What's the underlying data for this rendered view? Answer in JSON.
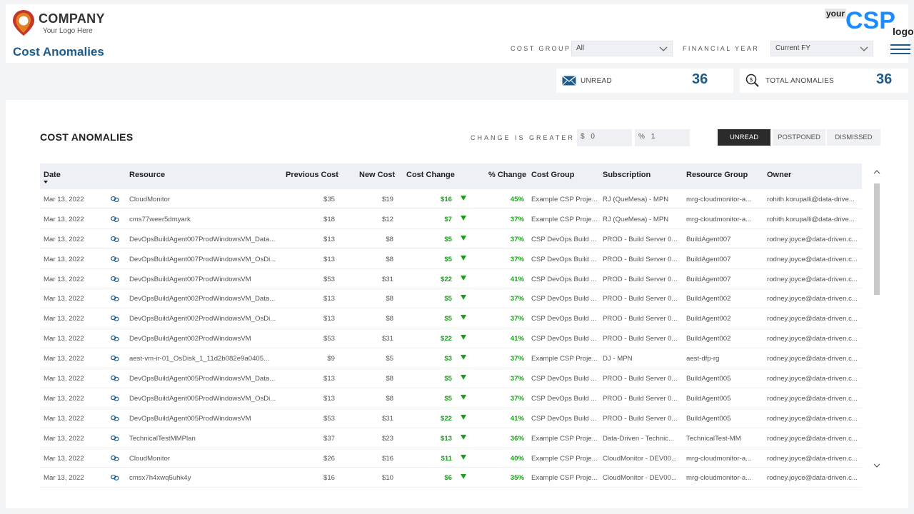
{
  "brand": {
    "name": "COMPANY",
    "tagline": "Your Logo Here",
    "accent": "#1c5b8c"
  },
  "csp_logo": {
    "your": "your",
    "csp": "CSP",
    "logo": "logo"
  },
  "page_title": "Cost Anomalies",
  "filters": {
    "cost_group_label": "COST GROUP",
    "cost_group_value": "All",
    "financial_year_label": "FINANCIAL YEAR",
    "financial_year_value": "Current FY"
  },
  "kpis": {
    "unread_label": "UNREAD",
    "unread_value": "36",
    "total_label": "TOTAL ANOMALIES",
    "total_value": "36"
  },
  "panel": {
    "title": "COST ANOMALIES",
    "change_label": "CHANGE IS GREATER",
    "dollar_prefix": "$",
    "dollar_value": "0",
    "percent_prefix": "%",
    "percent_value": "1"
  },
  "tabs": [
    {
      "label": "UNREAD",
      "active": true
    },
    {
      "label": "POSTPONED",
      "active": false
    },
    {
      "label": "DISMISSED",
      "active": false
    }
  ],
  "table": {
    "headers": {
      "date": "Date",
      "resource": "Resource",
      "previous_cost": "Previous Cost",
      "new_cost": "New Cost",
      "cost_change": "Cost Change",
      "pct_change": "% Change",
      "cost_group": "Cost Group",
      "subscription": "Subscription",
      "resource_group": "Resource Group",
      "owner": "Owner"
    },
    "rows": [
      {
        "date": "Mar 13, 2022",
        "resource": "CloudMonitor",
        "prev": "$35",
        "new": "$19",
        "change": "$16",
        "pct": "45%",
        "cost_group": "Example CSP Proje...",
        "subscription": "RJ (QueMesa) - MPN",
        "resource_group": "mrg-cloudmonitor-a...",
        "owner": "rohith.korupalli@data-drive..."
      },
      {
        "date": "Mar 13, 2022",
        "resource": "cms77weer5dmyark",
        "prev": "$18",
        "new": "$12",
        "change": "$7",
        "pct": "37%",
        "cost_group": "Example CSP Proje...",
        "subscription": "RJ (QueMesa) - MPN",
        "resource_group": "mrg-cloudmonitor-a...",
        "owner": "rohith.korupalli@data-drive..."
      },
      {
        "date": "Mar 13, 2022",
        "resource": "DevOpsBuildAgent007ProdWindowsVM_Data...",
        "prev": "$13",
        "new": "$8",
        "change": "$5",
        "pct": "37%",
        "cost_group": "CSP DevOps Build ...",
        "subscription": "PROD - Build Server 0...",
        "resource_group": "BuildAgent007",
        "owner": "rodney.joyce@data-driven.c..."
      },
      {
        "date": "Mar 13, 2022",
        "resource": "DevOpsBuildAgent007ProdWindowsVM_OsDi...",
        "prev": "$13",
        "new": "$8",
        "change": "$5",
        "pct": "37%",
        "cost_group": "CSP DevOps Build ...",
        "subscription": "PROD - Build Server 0...",
        "resource_group": "BuildAgent007",
        "owner": "rodney.joyce@data-driven.c..."
      },
      {
        "date": "Mar 13, 2022",
        "resource": "DevOpsBuildAgent007ProdWindowsVM",
        "prev": "$53",
        "new": "$31",
        "change": "$22",
        "pct": "41%",
        "cost_group": "CSP DevOps Build ...",
        "subscription": "PROD - Build Server 0...",
        "resource_group": "BuildAgent007",
        "owner": "rodney.joyce@data-driven.c..."
      },
      {
        "date": "Mar 13, 2022",
        "resource": "DevOpsBuildAgent002ProdWindowsVM_Data...",
        "prev": "$13",
        "new": "$8",
        "change": "$5",
        "pct": "37%",
        "cost_group": "CSP DevOps Build ...",
        "subscription": "PROD - Build Server 0...",
        "resource_group": "BuildAgent002",
        "owner": "rodney.joyce@data-driven.c..."
      },
      {
        "date": "Mar 13, 2022",
        "resource": "DevOpsBuildAgent002ProdWindowsVM_OsDi...",
        "prev": "$13",
        "new": "$8",
        "change": "$5",
        "pct": "37%",
        "cost_group": "CSP DevOps Build ...",
        "subscription": "PROD - Build Server 0...",
        "resource_group": "BuildAgent002",
        "owner": "rodney.joyce@data-driven.c..."
      },
      {
        "date": "Mar 13, 2022",
        "resource": "DevOpsBuildAgent002ProdWindowsVM",
        "prev": "$53",
        "new": "$31",
        "change": "$22",
        "pct": "41%",
        "cost_group": "CSP DevOps Build ...",
        "subscription": "PROD - Build Server 0...",
        "resource_group": "BuildAgent002",
        "owner": "rodney.joyce@data-driven.c..."
      },
      {
        "date": "Mar 13, 2022",
        "resource": "aest-vm-ir-01_OsDisk_1_11d2b082e9a0405...",
        "prev": "$9",
        "new": "$5",
        "change": "$3",
        "pct": "37%",
        "cost_group": "Example CSP Proje...",
        "subscription": "DJ - MPN",
        "resource_group": "aest-dfp-rg",
        "owner": "rodney.joyce@data-driven.c..."
      },
      {
        "date": "Mar 13, 2022",
        "resource": "DevOpsBuildAgent005ProdWindowsVM_Data...",
        "prev": "$13",
        "new": "$8",
        "change": "$5",
        "pct": "37%",
        "cost_group": "CSP DevOps Build ...",
        "subscription": "PROD - Build Server 0...",
        "resource_group": "BuildAgent005",
        "owner": "rodney.joyce@data-driven.c..."
      },
      {
        "date": "Mar 13, 2022",
        "resource": "DevOpsBuildAgent005ProdWindowsVM_OsDi...",
        "prev": "$13",
        "new": "$8",
        "change": "$5",
        "pct": "37%",
        "cost_group": "CSP DevOps Build ...",
        "subscription": "PROD - Build Server 0...",
        "resource_group": "BuildAgent005",
        "owner": "rodney.joyce@data-driven.c..."
      },
      {
        "date": "Mar 13, 2022",
        "resource": "DevOpsBuildAgent005ProdWindowsVM",
        "prev": "$53",
        "new": "$31",
        "change": "$22",
        "pct": "41%",
        "cost_group": "CSP DevOps Build ...",
        "subscription": "PROD - Build Server 0...",
        "resource_group": "BuildAgent005",
        "owner": "rodney.joyce@data-driven.c..."
      },
      {
        "date": "Mar 13, 2022",
        "resource": "TechnicalTestMMPlan",
        "prev": "$37",
        "new": "$23",
        "change": "$13",
        "pct": "36%",
        "cost_group": "Example CSP Proje...",
        "subscription": "Data-Driven - Technic...",
        "resource_group": "TechnicalTest-MM",
        "owner": "rodney.joyce@data-driven.c..."
      },
      {
        "date": "Mar 13, 2022",
        "resource": "CloudMonitor",
        "prev": "$26",
        "new": "$16",
        "change": "$11",
        "pct": "40%",
        "cost_group": "Example CSP Proje...",
        "subscription": "CloudMonitor - DEV00...",
        "resource_group": "mrg-cloudmonitor-a...",
        "owner": "rodney.joyce@data-driven.c..."
      },
      {
        "date": "Mar 13, 2022",
        "resource": "cmsx7h4xwq5uhk4y",
        "prev": "$16",
        "new": "$10",
        "change": "$6",
        "pct": "35%",
        "cost_group": "Example CSP Proje...",
        "subscription": "CloudMonitor - DEV00...",
        "resource_group": "mrg-cloudmonitor-a...",
        "owner": "rodney.joyce@data-driven.c..."
      }
    ]
  },
  "colors": {
    "positive": "#1e9e1e",
    "csp_blue": "#1a8cff",
    "dark_tab": "#2b2b2b"
  }
}
